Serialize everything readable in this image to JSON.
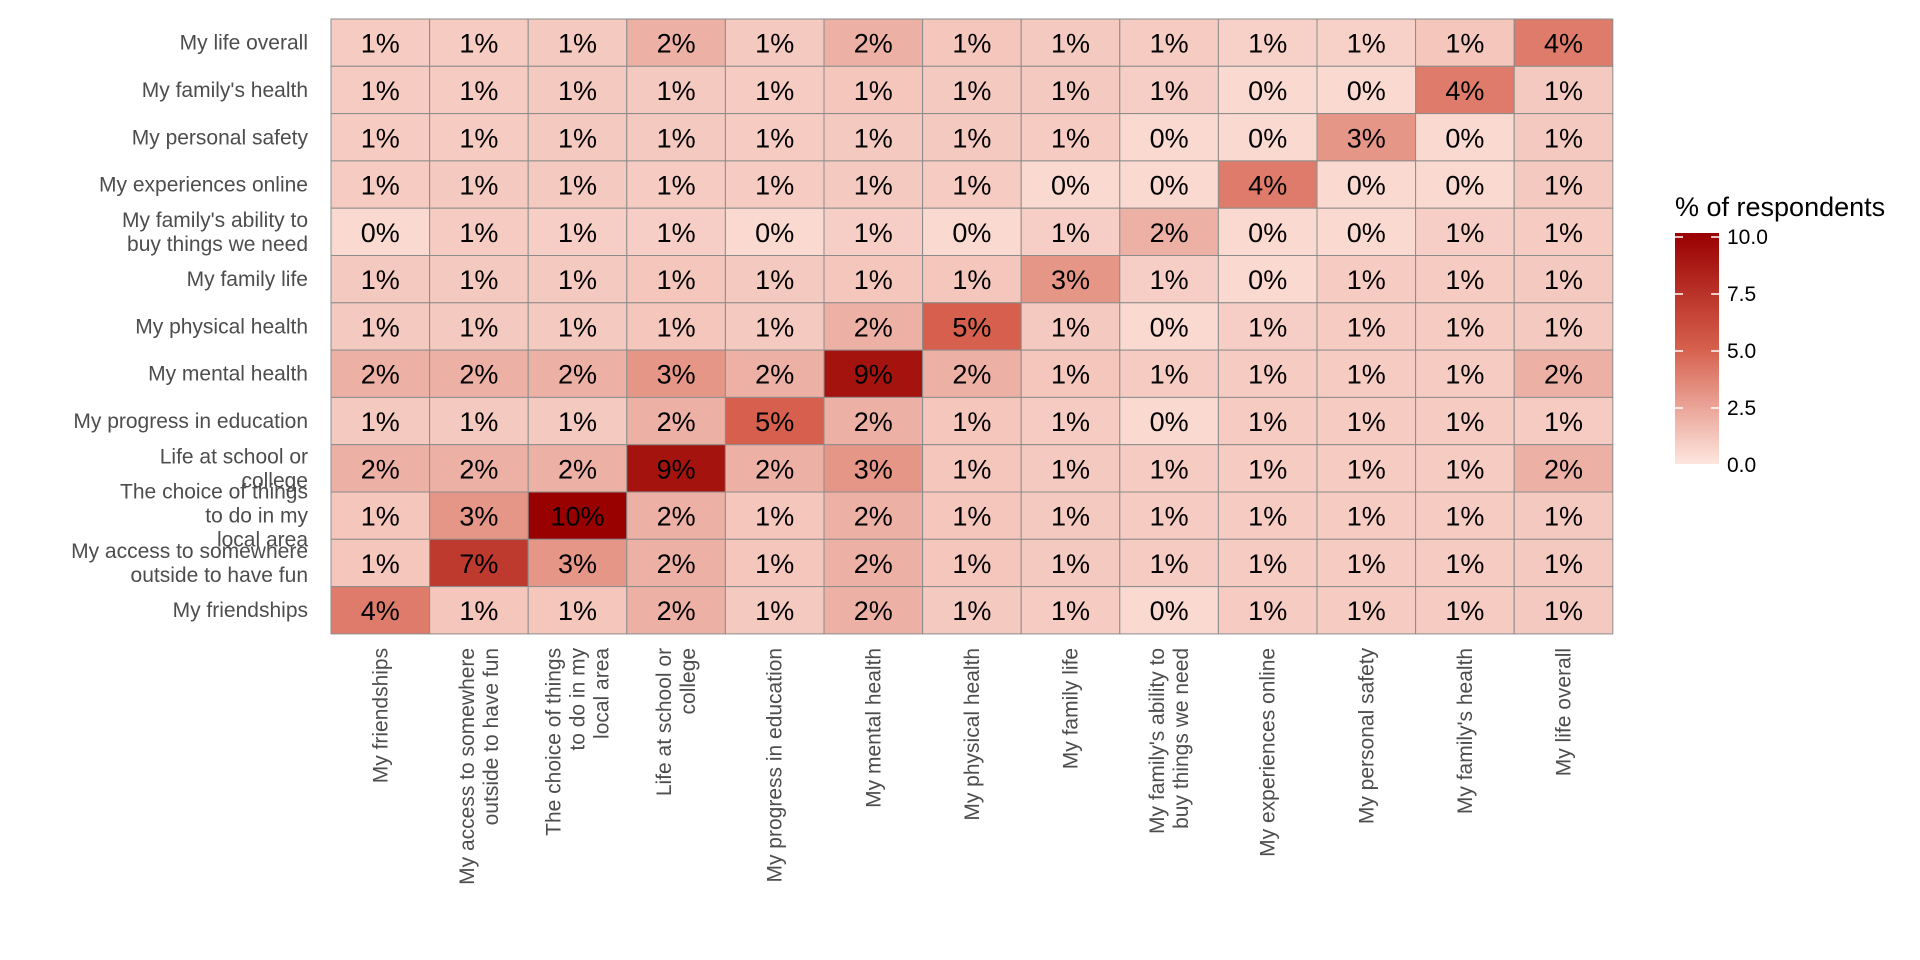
{
  "chart_data": {
    "type": "heatmap",
    "title": "",
    "xlabel": "",
    "ylabel": "",
    "x_categories": [
      "My friendships",
      "My access to somewhere\noutside to have fun",
      "The choice of things\nto do in my\nlocal area",
      "Life at school or\ncollege",
      "My progress in education",
      "My mental health",
      "My physical health",
      "My family life",
      "My family's ability to\nbuy things we need",
      "My experiences online",
      "My personal safety",
      "My family's health",
      "My life overall"
    ],
    "y_categories": [
      "My life overall",
      "My family's health",
      "My personal safety",
      "My experiences online",
      "My family's ability to\nbuy things we need",
      "My family life",
      "My physical health",
      "My mental health",
      "My progress in education",
      "Life at school or\ncollege",
      "The choice of things\nto do in my\nlocal area",
      "My access to somewhere\noutside to have fun",
      "My friendships"
    ],
    "values": [
      [
        1.0,
        1.0,
        1.1,
        2.0,
        1.1,
        2.0,
        1.2,
        1.1,
        1.0,
        0.8,
        0.8,
        1.2,
        4.0
      ],
      [
        1.0,
        1.0,
        1.1,
        1.1,
        1.0,
        1.2,
        1.1,
        1.1,
        0.9,
        0.5,
        0.5,
        4.0,
        1.1
      ],
      [
        1.0,
        1.0,
        1.1,
        1.1,
        1.0,
        1.1,
        1.1,
        1.0,
        0.5,
        0.5,
        3.0,
        0.5,
        1.1
      ],
      [
        1.0,
        1.1,
        1.1,
        1.0,
        1.0,
        1.1,
        1.0,
        0.5,
        0.5,
        4.0,
        0.5,
        0.5,
        1.1
      ],
      [
        0.5,
        1.0,
        0.9,
        0.9,
        0.5,
        0.9,
        0.5,
        0.9,
        2.0,
        0.5,
        0.5,
        0.9,
        1.0
      ],
      [
        1.1,
        1.1,
        1.1,
        1.2,
        1.1,
        1.2,
        1.2,
        3.0,
        0.9,
        0.5,
        1.0,
        1.0,
        1.1
      ],
      [
        1.1,
        1.1,
        1.1,
        1.2,
        1.1,
        2.0,
        5.0,
        1.1,
        0.5,
        0.9,
        1.0,
        1.0,
        1.1
      ],
      [
        2.0,
        2.0,
        2.0,
        3.0,
        2.0,
        9.0,
        2.0,
        1.2,
        1.0,
        1.0,
        1.0,
        1.0,
        2.0
      ],
      [
        1.1,
        1.1,
        1.1,
        2.0,
        5.0,
        2.0,
        1.2,
        1.0,
        0.5,
        1.0,
        1.0,
        1.0,
        1.0
      ],
      [
        2.0,
        2.0,
        2.0,
        9.0,
        2.0,
        3.0,
        1.2,
        1.1,
        1.0,
        1.0,
        1.0,
        1.0,
        2.0
      ],
      [
        1.2,
        3.0,
        10.0,
        2.0,
        1.2,
        2.0,
        1.2,
        1.1,
        1.0,
        1.0,
        1.0,
        1.0,
        1.1
      ],
      [
        1.2,
        7.0,
        3.0,
        2.0,
        1.2,
        2.0,
        1.2,
        1.1,
        1.0,
        1.0,
        1.0,
        1.0,
        1.1
      ],
      [
        4.0,
        1.2,
        1.2,
        2.0,
        1.1,
        2.0,
        1.1,
        1.0,
        0.5,
        1.0,
        1.0,
        1.0,
        1.1
      ]
    ],
    "labels": [
      [
        "1%",
        "1%",
        "1%",
        "2%",
        "1%",
        "2%",
        "1%",
        "1%",
        "1%",
        "1%",
        "1%",
        "1%",
        "4%"
      ],
      [
        "1%",
        "1%",
        "1%",
        "1%",
        "1%",
        "1%",
        "1%",
        "1%",
        "1%",
        "0%",
        "0%",
        "4%",
        "1%"
      ],
      [
        "1%",
        "1%",
        "1%",
        "1%",
        "1%",
        "1%",
        "1%",
        "1%",
        "0%",
        "0%",
        "3%",
        "0%",
        "1%"
      ],
      [
        "1%",
        "1%",
        "1%",
        "1%",
        "1%",
        "1%",
        "1%",
        "0%",
        "0%",
        "4%",
        "0%",
        "0%",
        "1%"
      ],
      [
        "0%",
        "1%",
        "1%",
        "1%",
        "0%",
        "1%",
        "0%",
        "1%",
        "2%",
        "0%",
        "0%",
        "1%",
        "1%"
      ],
      [
        "1%",
        "1%",
        "1%",
        "1%",
        "1%",
        "1%",
        "1%",
        "3%",
        "1%",
        "0%",
        "1%",
        "1%",
        "1%"
      ],
      [
        "1%",
        "1%",
        "1%",
        "1%",
        "1%",
        "2%",
        "5%",
        "1%",
        "0%",
        "1%",
        "1%",
        "1%",
        "1%"
      ],
      [
        "2%",
        "2%",
        "2%",
        "3%",
        "2%",
        "9%",
        "2%",
        "1%",
        "1%",
        "1%",
        "1%",
        "1%",
        "2%"
      ],
      [
        "1%",
        "1%",
        "1%",
        "2%",
        "5%",
        "2%",
        "1%",
        "1%",
        "0%",
        "1%",
        "1%",
        "1%",
        "1%"
      ],
      [
        "2%",
        "2%",
        "2%",
        "9%",
        "2%",
        "3%",
        "1%",
        "1%",
        "1%",
        "1%",
        "1%",
        "1%",
        "2%"
      ],
      [
        "1%",
        "3%",
        "10%",
        "2%",
        "1%",
        "2%",
        "1%",
        "1%",
        "1%",
        "1%",
        "1%",
        "1%",
        "1%"
      ],
      [
        "1%",
        "7%",
        "3%",
        "2%",
        "1%",
        "2%",
        "1%",
        "1%",
        "1%",
        "1%",
        "1%",
        "1%",
        "1%"
      ],
      [
        "4%",
        "1%",
        "1%",
        "2%",
        "1%",
        "2%",
        "1%",
        "1%",
        "0%",
        "1%",
        "1%",
        "1%",
        "1%"
      ]
    ],
    "legend": {
      "title": "% of respondents",
      "min": 0,
      "max": 10,
      "ticks": [
        "10.0",
        "7.5",
        "5.0",
        "2.5",
        "0.0"
      ],
      "placement": "right"
    },
    "colors": {
      "low": "#fde6df",
      "high": "#990000",
      "border": "#8c8c8c",
      "axis_text": "#4d4d4d"
    },
    "grid": false
  }
}
